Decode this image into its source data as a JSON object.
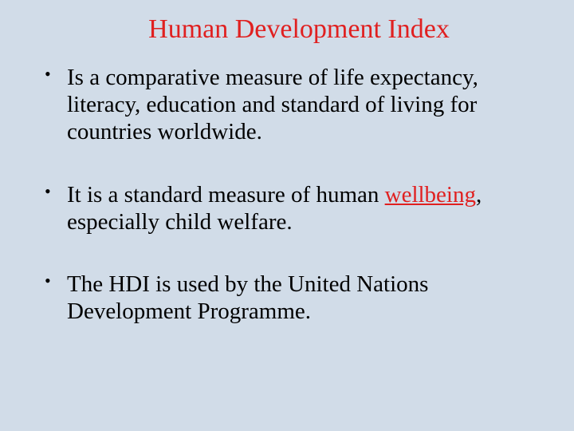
{
  "slide": {
    "title": "Human Development Index",
    "title_color": "#e02020",
    "title_fontsize": 34,
    "background_color": "#d1dce8",
    "body_color": "#000000",
    "body_fontsize": 29,
    "highlight_color": "#e02020",
    "font_family": "Comic Sans MS",
    "bullets": [
      {
        "pre": "Is a comparative measure of life expectancy, literacy, education and standard of living for countries worldwide."
      },
      {
        "pre": "It is a standard measure of human ",
        "highlight": "wellbeing",
        "post": ", especially child welfare.",
        "highlight_underline": true
      },
      {
        "pre": "The HDI is used by the United Nations Development Programme."
      }
    ]
  }
}
